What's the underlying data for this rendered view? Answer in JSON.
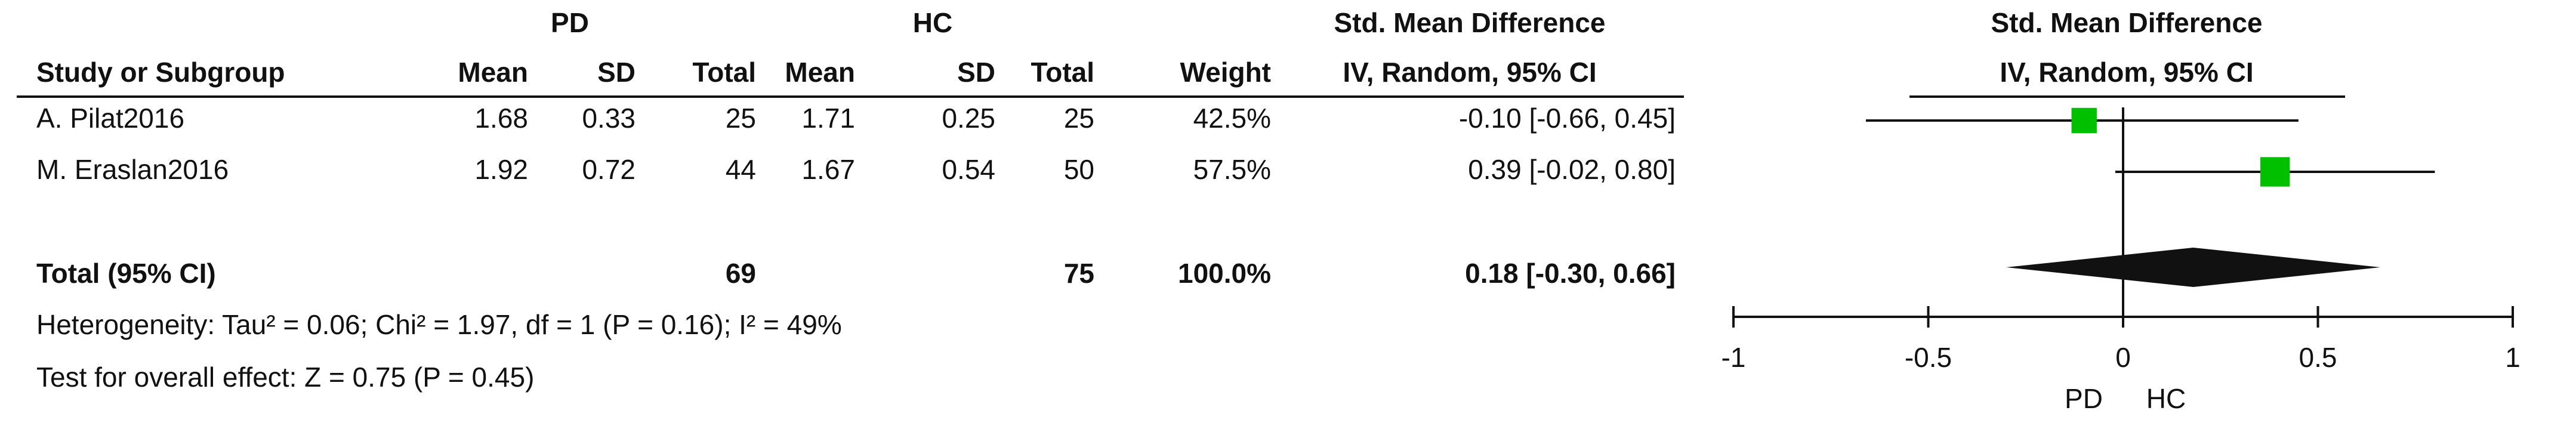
{
  "chart_data": {
    "type": "forest",
    "group_headers": [
      "PD",
      "HC"
    ],
    "columns": [
      "Study or Subgroup",
      "Mean",
      "SD",
      "Total",
      "Mean",
      "SD",
      "Total",
      "Weight"
    ],
    "effect_header": [
      "Std. Mean Difference",
      "IV, Random, 95% CI"
    ],
    "plot_header": [
      "Std. Mean Difference",
      "IV, Random, 95% CI"
    ],
    "studies": [
      {
        "name": "A. Pilat2016",
        "pd_mean": 1.68,
        "pd_sd": 0.33,
        "pd_total": 25,
        "hc_mean": 1.71,
        "hc_sd": 0.25,
        "hc_total": 25,
        "weight": 42.5,
        "weight_label": "42.5%",
        "smd": -0.1,
        "ci_low": -0.66,
        "ci_high": 0.45,
        "ci_label": "-0.10 [-0.66, 0.45]"
      },
      {
        "name": "M. Eraslan2016",
        "pd_mean": 1.92,
        "pd_sd": 0.72,
        "pd_total": 44,
        "hc_mean": 1.67,
        "hc_sd": 0.54,
        "hc_total": 50,
        "weight": 57.5,
        "weight_label": "57.5%",
        "smd": 0.39,
        "ci_low": -0.02,
        "ci_high": 0.8,
        "ci_label": "0.39 [-0.02, 0.80]"
      }
    ],
    "total": {
      "name": "Total (95% CI)",
      "pd_total": 69,
      "hc_total": 75,
      "weight": 100,
      "weight_label": "100.0%",
      "smd": 0.18,
      "ci_low": -0.3,
      "ci_high": 0.66,
      "ci_label": "0.18 [-0.30, 0.66]"
    },
    "heterogeneity": "Heterogeneity: Tau² = 0.06; Chi² = 1.97, df = 1 (P = 0.16); I² = 49%",
    "overall_effect": "Test for overall effect: Z = 0.75 (P = 0.45)",
    "xlim": [
      -1,
      1
    ],
    "xticks": [
      -1,
      -0.5,
      0,
      0.5,
      1
    ],
    "favours": [
      "PD",
      "HC"
    ],
    "box_color": "#00c000"
  }
}
